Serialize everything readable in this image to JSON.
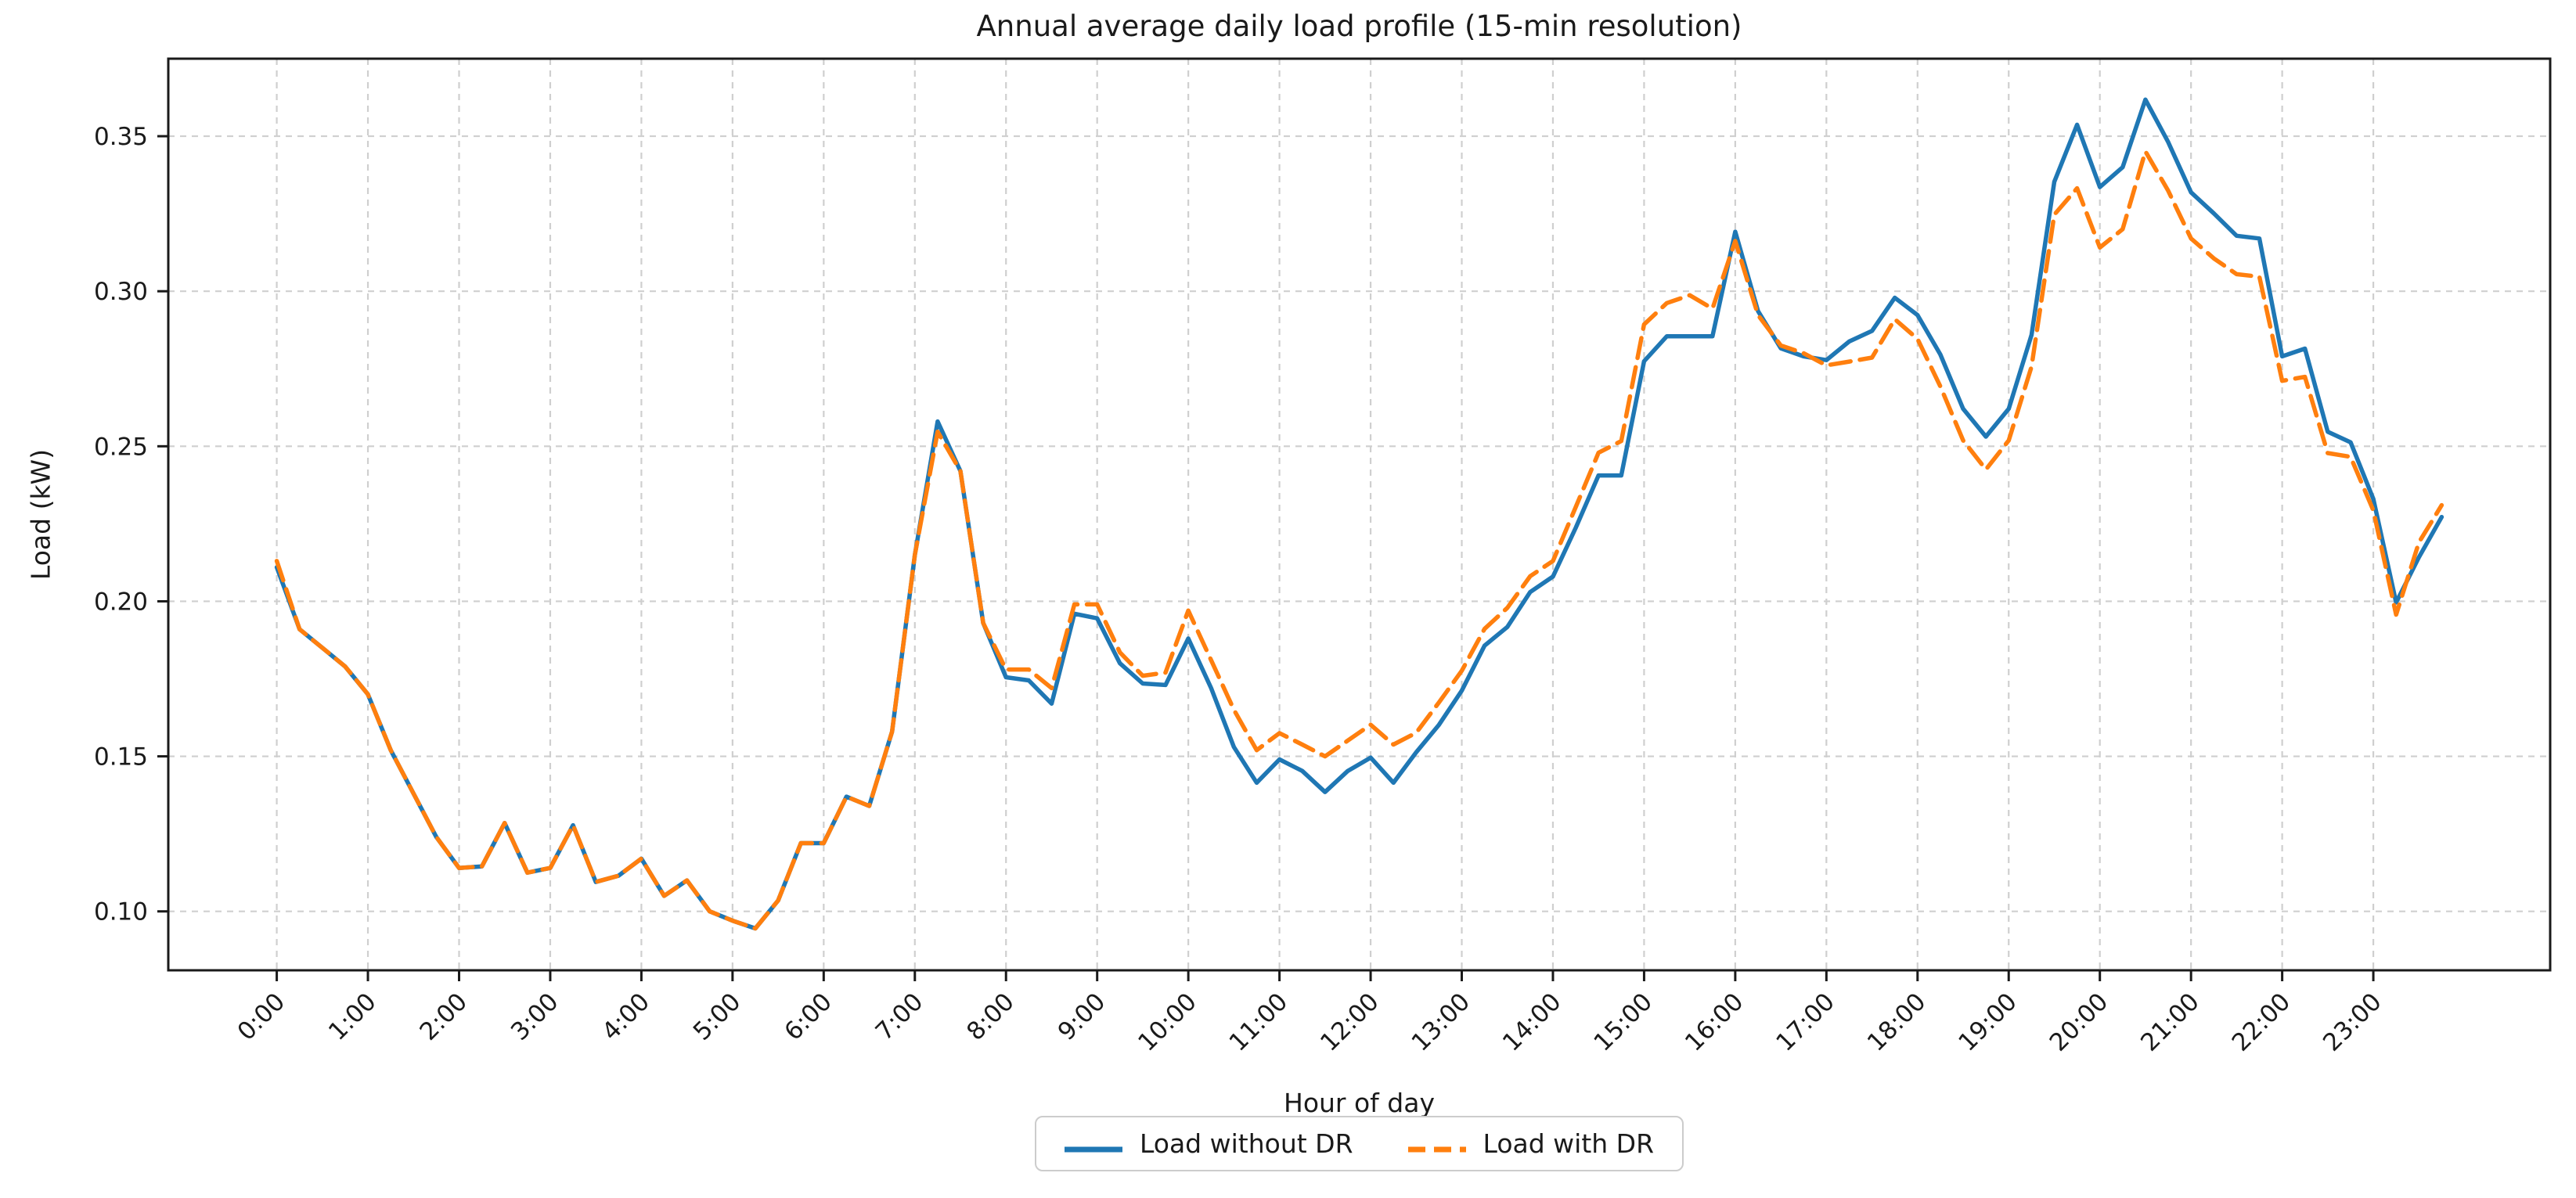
{
  "title": "Annual average daily load profile (15-min resolution)",
  "axes": {
    "x_label": "Hour of day",
    "y_label": "Load (kW)"
  },
  "chart_data": {
    "type": "line",
    "title": "Annual average daily load profile (15-min resolution)",
    "xlabel": "Hour of day",
    "ylabel": "Load (kW)",
    "x_resolution_minutes": 15,
    "x_step_hours": 0.25,
    "points_per_series": 96,
    "x_tick_hours": [
      0,
      1,
      2,
      3,
      4,
      5,
      6,
      7,
      8,
      9,
      10,
      11,
      12,
      13,
      14,
      15,
      16,
      17,
      18,
      19,
      20,
      21,
      22,
      23
    ],
    "x_tick_labels": [
      "0:00",
      "1:00",
      "2:00",
      "3:00",
      "4:00",
      "5:00",
      "6:00",
      "7:00",
      "8:00",
      "9:00",
      "10:00",
      "11:00",
      "12:00",
      "13:00",
      "14:00",
      "15:00",
      "16:00",
      "17:00",
      "18:00",
      "19:00",
      "20:00",
      "21:00",
      "22:00",
      "23:00"
    ],
    "yticks": [
      0.1,
      0.15,
      0.2,
      0.25,
      0.3,
      0.35
    ],
    "y_tick_labels": [
      "0.10",
      "0.15",
      "0.20",
      "0.25",
      "0.30",
      "0.35"
    ],
    "xlim_hours": [
      -1.19,
      24.94
    ],
    "ylim": [
      0.081,
      0.375
    ],
    "grid": true,
    "grid_style": "dashed",
    "legend_position": "lower center",
    "series": [
      {
        "name": "Load without DR",
        "color": "#1f77b4",
        "line_style": "solid",
        "values": [
          0.211,
          0.191,
          0.185,
          0.179,
          0.17,
          0.152,
          0.138,
          0.124,
          0.114,
          0.1145,
          0.1285,
          0.1125,
          0.114,
          0.1278,
          0.1095,
          0.1115,
          0.117,
          0.105,
          0.11,
          0.1,
          0.097,
          0.0945,
          0.1035,
          0.122,
          0.122,
          0.137,
          0.134,
          0.158,
          0.215,
          0.258,
          0.242,
          0.193,
          0.1755,
          0.1745,
          0.167,
          0.196,
          0.1945,
          0.18,
          0.1735,
          0.173,
          0.188,
          0.172,
          0.153,
          0.1415,
          0.149,
          0.1453,
          0.1385,
          0.1453,
          0.1496,
          0.1415,
          0.1513,
          0.1602,
          0.1712,
          0.1857,
          0.1917,
          0.203,
          0.208,
          0.2237,
          0.2406,
          0.2406,
          0.2774,
          0.2855,
          0.2855,
          0.2855,
          0.3192,
          0.2936,
          0.2816,
          0.279,
          0.2778,
          0.2838,
          0.2872,
          0.2979,
          0.2923,
          0.2796,
          0.2621,
          0.2531,
          0.2621,
          0.2859,
          0.3353,
          0.3537,
          0.3336,
          0.34,
          0.3618,
          0.3481,
          0.3319,
          0.3251,
          0.3179,
          0.317,
          0.279,
          0.2815,
          0.2547,
          0.2513,
          0.233,
          0.1996,
          0.2142,
          0.2272
        ]
      },
      {
        "name": "Load with DR",
        "color": "#ff7f0e",
        "line_style": "dashed",
        "values": [
          0.213,
          0.191,
          0.185,
          0.179,
          0.17,
          0.152,
          0.138,
          0.124,
          0.114,
          0.1145,
          0.1285,
          0.1125,
          0.114,
          0.1278,
          0.1095,
          0.1115,
          0.117,
          0.105,
          0.11,
          0.1,
          0.097,
          0.0945,
          0.1035,
          0.122,
          0.122,
          0.137,
          0.134,
          0.158,
          0.215,
          0.2547,
          0.242,
          0.193,
          0.178,
          0.178,
          0.172,
          0.199,
          0.199,
          0.1835,
          0.176,
          0.177,
          0.197,
          0.181,
          0.165,
          0.152,
          0.1575,
          0.1538,
          0.15,
          0.1551,
          0.1602,
          0.1538,
          0.1576,
          0.1674,
          0.1776,
          0.1911,
          0.1979,
          0.2081,
          0.213,
          0.2304,
          0.2479,
          0.2517,
          0.2893,
          0.2962,
          0.2987,
          0.2944,
          0.3162,
          0.2923,
          0.2825,
          0.28,
          0.2761,
          0.2773,
          0.2786,
          0.291,
          0.2846,
          0.2693,
          0.2519,
          0.2425,
          0.2519,
          0.2757,
          0.3247,
          0.3332,
          0.3141,
          0.32,
          0.3451,
          0.3324,
          0.317,
          0.3106,
          0.3055,
          0.3047,
          0.2711,
          0.2724,
          0.2478,
          0.2466,
          0.2293,
          0.1957,
          0.219,
          0.231
        ]
      }
    ]
  }
}
